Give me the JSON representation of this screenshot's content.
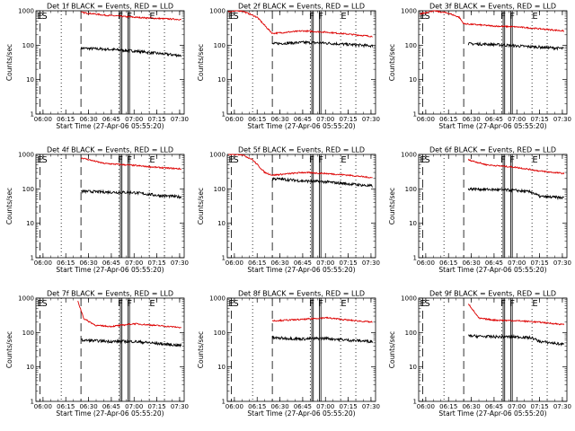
{
  "chart_data": [
    {
      "type": "line",
      "title": "Det 1f BLACK = Events, RED = LLD",
      "xlabel": "Start Time (27-Apr-06 05:55:20)",
      "ylabel": "Counts/sec",
      "yscale": "log",
      "ylim": [
        1,
        1000
      ],
      "x_ticks": [
        "06:00",
        "06:15",
        "06:30",
        "06:45",
        "07:00",
        "07:15",
        "07:30"
      ],
      "y_ticks": [
        "1",
        "10",
        "100",
        "1000"
      ],
      "markers": [
        {
          "label": "E",
          "x": "05:58"
        },
        {
          "label": "S",
          "x": "06:01"
        },
        {
          "label": "F",
          "x": "06:51"
        },
        {
          "label": "F",
          "x": "06:57"
        },
        {
          "label": "E",
          "x": "07:12"
        }
      ],
      "series": [
        {
          "name": "BLACK = Events",
          "points": [
            [
              "06:25",
              82
            ],
            [
              "06:45",
              75
            ],
            [
              "07:00",
              68
            ],
            [
              "07:15",
              58
            ],
            [
              "07:31",
              50
            ]
          ]
        },
        {
          "name": "RED = LLD",
          "points": [
            [
              "06:25",
              900
            ],
            [
              "06:40",
              750
            ],
            [
              "07:00",
              650
            ],
            [
              "07:15",
              600
            ],
            [
              "07:31",
              560
            ]
          ]
        }
      ]
    },
    {
      "type": "line",
      "title": "Det 2f BLACK = Events, RED = LLD",
      "xlabel": "Start Time (27-Apr-06 05:55:20)",
      "ylabel": "Counts/sec",
      "yscale": "log",
      "ylim": [
        1,
        1000
      ],
      "x_ticks": [
        "06:00",
        "06:15",
        "06:30",
        "06:45",
        "07:00",
        "07:15",
        "07:30"
      ],
      "y_ticks": [
        "1",
        "10",
        "100",
        "1000"
      ],
      "markers": [
        {
          "label": "E",
          "x": "05:58"
        },
        {
          "label": "S",
          "x": "06:01"
        },
        {
          "label": "F",
          "x": "06:51"
        },
        {
          "label": "F",
          "x": "06:57"
        },
        {
          "label": "E",
          "x": "07:12"
        }
      ],
      "series": [
        {
          "name": "BLACK = Events",
          "points": [
            [
              "06:25",
              110
            ],
            [
              "06:45",
              120
            ],
            [
              "07:00",
              115
            ],
            [
              "07:15",
              105
            ],
            [
              "07:31",
              95
            ]
          ]
        },
        {
          "name": "RED = LLD",
          "points": [
            [
              "05:56",
              950
            ],
            [
              "06:05",
              1000
            ],
            [
              "06:15",
              650
            ],
            [
              "06:22",
              300
            ],
            [
              "06:25",
              220
            ],
            [
              "06:45",
              260
            ],
            [
              "07:00",
              240
            ],
            [
              "07:15",
              210
            ],
            [
              "07:31",
              180
            ]
          ]
        }
      ]
    },
    {
      "type": "line",
      "title": "Det 3f BLACK = Events, RED = LLD",
      "xlabel": "Start Time (27-Apr-06 05:55:20)",
      "ylabel": "Counts/sec",
      "yscale": "log",
      "ylim": [
        1,
        1000
      ],
      "x_ticks": [
        "06:00",
        "06:15",
        "06:30",
        "06:45",
        "07:00",
        "07:15",
        "07:30"
      ],
      "y_ticks": [
        "1",
        "10",
        "100",
        "1000"
      ],
      "markers": [
        {
          "label": "E",
          "x": "05:58"
        },
        {
          "label": "S",
          "x": "06:01"
        },
        {
          "label": "F",
          "x": "06:51"
        },
        {
          "label": "F",
          "x": "06:57"
        },
        {
          "label": "E",
          "x": "07:12"
        }
      ],
      "series": [
        {
          "name": "BLACK = Events",
          "points": [
            [
              "06:28",
              110
            ],
            [
              "06:45",
              105
            ],
            [
              "07:00",
              95
            ],
            [
              "07:15",
              88
            ],
            [
              "07:31",
              80
            ]
          ]
        },
        {
          "name": "RED = LLD",
          "points": [
            [
              "05:56",
              800
            ],
            [
              "06:05",
              1000
            ],
            [
              "06:15",
              850
            ],
            [
              "06:22",
              650
            ],
            [
              "06:25",
              420
            ],
            [
              "06:45",
              360
            ],
            [
              "07:00",
              340
            ],
            [
              "07:15",
              300
            ],
            [
              "07:31",
              260
            ]
          ]
        }
      ]
    },
    {
      "type": "line",
      "title": "Det 4f BLACK = Events, RED = LLD",
      "xlabel": "Start Time (27-Apr-06 05:55:20)",
      "ylabel": "Counts/sec",
      "yscale": "log",
      "ylim": [
        1,
        1000
      ],
      "x_ticks": [
        "06:00",
        "06:15",
        "06:30",
        "06:45",
        "07:00",
        "07:15",
        "07:30"
      ],
      "y_ticks": [
        "1",
        "10",
        "100",
        "1000"
      ],
      "markers": [
        {
          "label": "E",
          "x": "05:58"
        },
        {
          "label": "S",
          "x": "06:01"
        },
        {
          "label": "F",
          "x": "06:51"
        },
        {
          "label": "F",
          "x": "06:57"
        },
        {
          "label": "E",
          "x": "07:12"
        }
      ],
      "series": [
        {
          "name": "BLACK = Events",
          "points": [
            [
              "06:25",
              85
            ],
            [
              "06:45",
              80
            ],
            [
              "07:00",
              78
            ],
            [
              "07:15",
              65
            ],
            [
              "07:31",
              58
            ]
          ]
        },
        {
          "name": "RED = LLD",
          "points": [
            [
              "06:25",
              800
            ],
            [
              "06:40",
              550
            ],
            [
              "07:00",
              480
            ],
            [
              "07:15",
              420
            ],
            [
              "07:31",
              380
            ]
          ]
        }
      ]
    },
    {
      "type": "line",
      "title": "Det 5f BLACK = Events, RED = LLD",
      "xlabel": "Start Time (27-Apr-06 05:55:20)",
      "ylabel": "Counts/sec",
      "yscale": "log",
      "ylim": [
        1,
        1000
      ],
      "x_ticks": [
        "06:00",
        "06:15",
        "06:30",
        "06:45",
        "07:00",
        "07:15",
        "07:30"
      ],
      "y_ticks": [
        "1",
        "10",
        "100",
        "1000"
      ],
      "markers": [
        {
          "label": "E",
          "x": "05:58"
        },
        {
          "label": "S",
          "x": "06:01"
        },
        {
          "label": "F",
          "x": "06:51"
        },
        {
          "label": "F",
          "x": "06:57"
        },
        {
          "label": "E",
          "x": "07:12"
        }
      ],
      "series": [
        {
          "name": "BLACK = Events",
          "points": [
            [
              "06:25",
              200
            ],
            [
              "06:45",
              170
            ],
            [
              "07:00",
              160
            ],
            [
              "07:15",
              140
            ],
            [
              "07:31",
              120
            ]
          ]
        },
        {
          "name": "RED = LLD",
          "points": [
            [
              "05:56",
              1000
            ],
            [
              "06:05",
              1000
            ],
            [
              "06:12",
              700
            ],
            [
              "06:20",
              300
            ],
            [
              "06:25",
              250
            ],
            [
              "06:45",
              300
            ],
            [
              "07:00",
              280
            ],
            [
              "07:15",
              250
            ],
            [
              "07:31",
              210
            ]
          ]
        }
      ]
    },
    {
      "type": "line",
      "title": "Det 6f BLACK = Events, RED = LLD",
      "xlabel": "Start Time (27-Apr-06 05:55:20)",
      "ylabel": "Counts/sec",
      "yscale": "log",
      "ylim": [
        1,
        1000
      ],
      "x_ticks": [
        "06:00",
        "06:15",
        "06:30",
        "06:45",
        "07:00",
        "07:15",
        "07:30"
      ],
      "y_ticks": [
        "1",
        "10",
        "100",
        "1000"
      ],
      "markers": [
        {
          "label": "E",
          "x": "05:58"
        },
        {
          "label": "S",
          "x": "06:01"
        },
        {
          "label": "F",
          "x": "06:51"
        },
        {
          "label": "F",
          "x": "06:57"
        },
        {
          "label": "E",
          "x": "07:12"
        }
      ],
      "series": [
        {
          "name": "BLACK = Events",
          "points": [
            [
              "06:28",
              100
            ],
            [
              "06:45",
              95
            ],
            [
              "07:00",
              90
            ],
            [
              "07:10",
              80
            ],
            [
              "07:15",
              60
            ],
            [
              "07:31",
              55
            ]
          ]
        },
        {
          "name": "RED = LLD",
          "points": [
            [
              "06:28",
              700
            ],
            [
              "06:40",
              500
            ],
            [
              "07:00",
              420
            ],
            [
              "07:15",
              330
            ],
            [
              "07:31",
              280
            ]
          ]
        }
      ]
    },
    {
      "type": "line",
      "title": "Det 7f BLACK = Events, RED = LLD",
      "xlabel": "Start Time (27-Apr-06 05:55:20)",
      "ylabel": "Counts/sec",
      "yscale": "log",
      "ylim": [
        1,
        1000
      ],
      "x_ticks": [
        "06:00",
        "06:15",
        "06:30",
        "06:45",
        "07:00",
        "07:15",
        "07:30"
      ],
      "y_ticks": [
        "1",
        "10",
        "100",
        "1000"
      ],
      "markers": [
        {
          "label": "E",
          "x": "05:58"
        },
        {
          "label": "S",
          "x": "06:01"
        },
        {
          "label": "F",
          "x": "06:51"
        },
        {
          "label": "F",
          "x": "06:57"
        },
        {
          "label": "E",
          "x": "07:12"
        }
      ],
      "series": [
        {
          "name": "BLACK = Events",
          "points": [
            [
              "06:25",
              60
            ],
            [
              "06:45",
              55
            ],
            [
              "07:00",
              55
            ],
            [
              "07:15",
              48
            ],
            [
              "07:31",
              42
            ]
          ]
        },
        {
          "name": "RED = LLD",
          "points": [
            [
              "06:23",
              800
            ],
            [
              "06:27",
              250
            ],
            [
              "06:35",
              160
            ],
            [
              "06:45",
              150
            ],
            [
              "07:00",
              180
            ],
            [
              "07:15",
              160
            ],
            [
              "07:31",
              140
            ]
          ]
        }
      ]
    },
    {
      "type": "line",
      "title": "Det 8f BLACK = Events, RED = LLD",
      "xlabel": "Start Time (27-Apr-06 05:55:20)",
      "ylabel": "Counts/sec",
      "yscale": "log",
      "ylim": [
        1,
        1000
      ],
      "x_ticks": [
        "06:00",
        "06:15",
        "06:30",
        "06:45",
        "07:00",
        "07:15",
        "07:30"
      ],
      "y_ticks": [
        "1",
        "10",
        "100",
        "1000"
      ],
      "markers": [
        {
          "label": "E",
          "x": "05:58"
        },
        {
          "label": "S",
          "x": "06:01"
        },
        {
          "label": "F",
          "x": "06:51"
        },
        {
          "label": "F",
          "x": "06:57"
        },
        {
          "label": "E",
          "x": "07:12"
        }
      ],
      "series": [
        {
          "name": "BLACK = Events",
          "points": [
            [
              "06:25",
              70
            ],
            [
              "06:45",
              65
            ],
            [
              "07:00",
              68
            ],
            [
              "07:15",
              60
            ],
            [
              "07:31",
              55
            ]
          ]
        },
        {
          "name": "RED = LLD",
          "points": [
            [
              "06:25",
              220
            ],
            [
              "06:45",
              240
            ],
            [
              "07:00",
              270
            ],
            [
              "07:15",
              230
            ],
            [
              "07:31",
              200
            ]
          ]
        }
      ]
    },
    {
      "type": "line",
      "title": "Det 9f BLACK = Events, RED = LLD",
      "xlabel": "Start Time (27-Apr-06 05:55:20)",
      "ylabel": "Counts/sec",
      "yscale": "log",
      "ylim": [
        1,
        1000
      ],
      "x_ticks": [
        "06:00",
        "06:15",
        "06:30",
        "06:45",
        "07:00",
        "07:15",
        "07:30"
      ],
      "y_ticks": [
        "1",
        "10",
        "100",
        "1000"
      ],
      "markers": [
        {
          "label": "E",
          "x": "05:58"
        },
        {
          "label": "S",
          "x": "06:01"
        },
        {
          "label": "F",
          "x": "06:51"
        },
        {
          "label": "F",
          "x": "06:57"
        },
        {
          "label": "E",
          "x": "07:12"
        }
      ],
      "series": [
        {
          "name": "BLACK = Events",
          "points": [
            [
              "06:28",
              80
            ],
            [
              "06:45",
              75
            ],
            [
              "07:00",
              75
            ],
            [
              "07:10",
              70
            ],
            [
              "07:15",
              55
            ],
            [
              "07:31",
              45
            ]
          ]
        },
        {
          "name": "RED = LLD",
          "points": [
            [
              "06:28",
              700
            ],
            [
              "06:35",
              260
            ],
            [
              "06:45",
              230
            ],
            [
              "07:00",
              220
            ],
            [
              "07:15",
              200
            ],
            [
              "07:31",
              170
            ]
          ]
        }
      ]
    }
  ],
  "colors": {
    "events": "#000000",
    "lld": "#dd0000"
  }
}
